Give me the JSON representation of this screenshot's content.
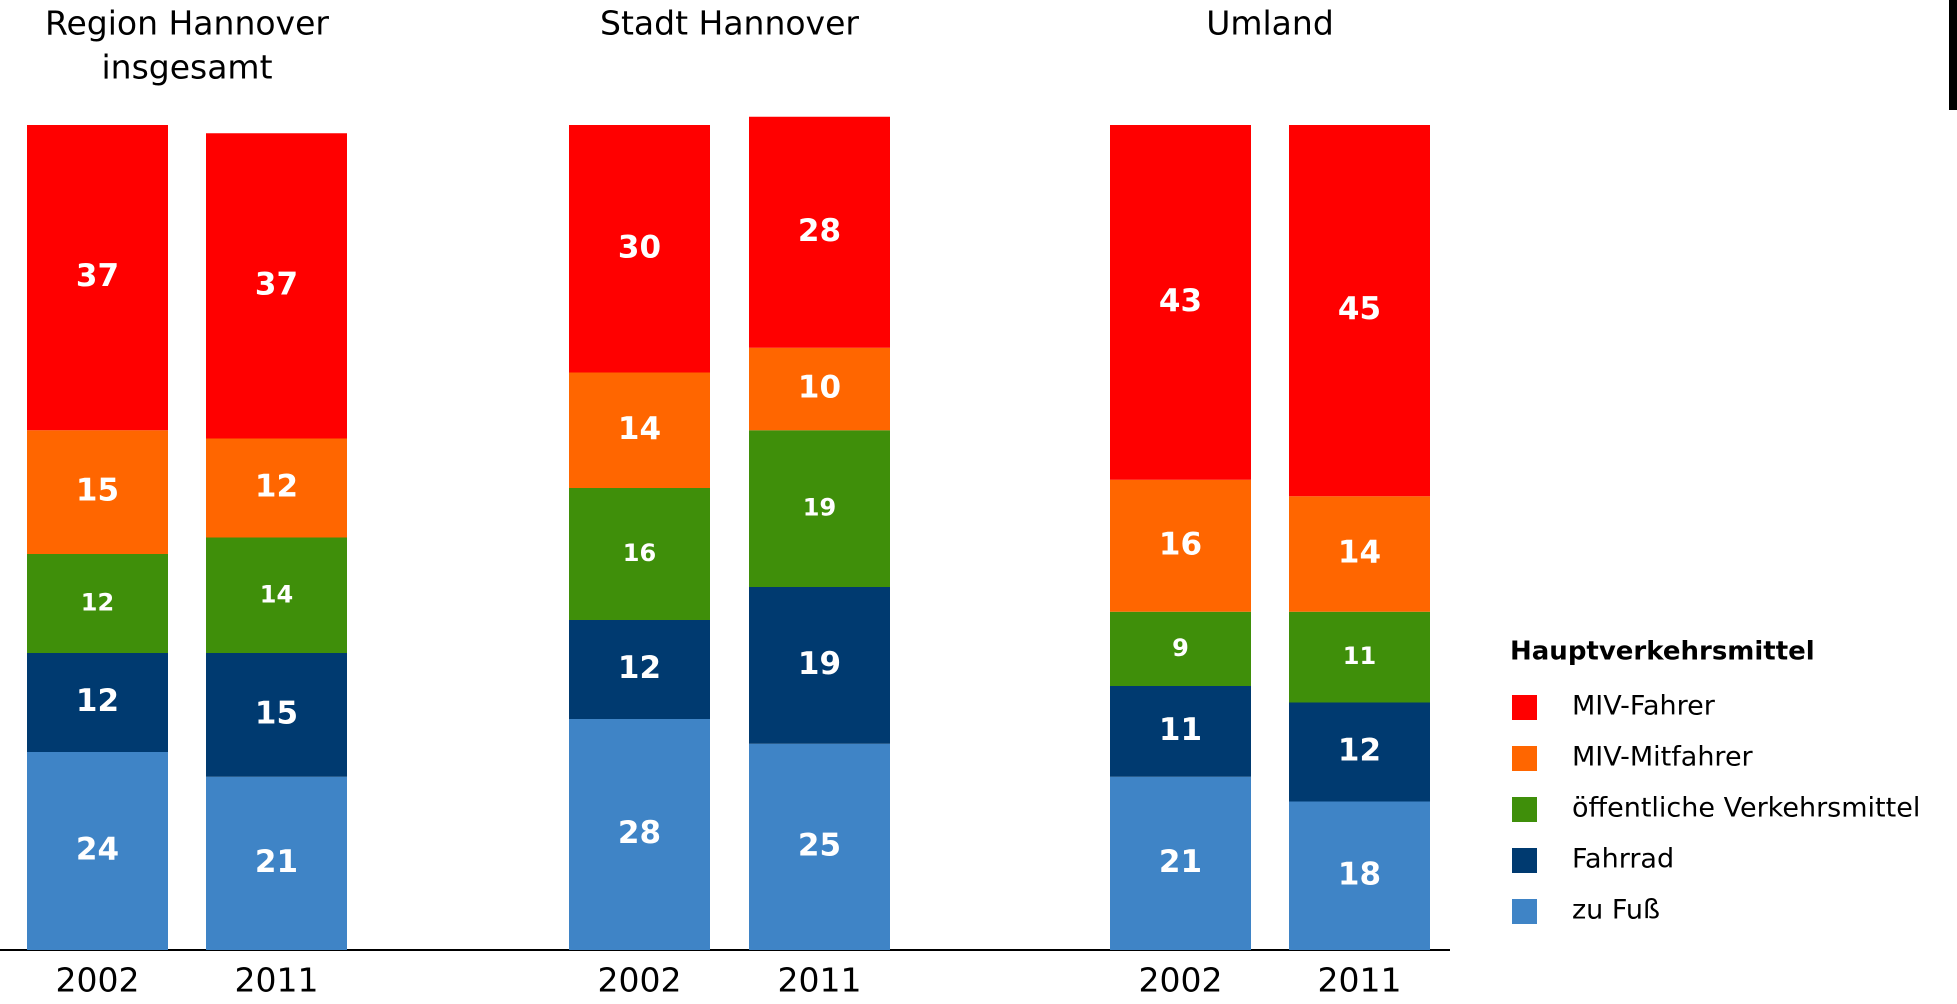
{
  "chart_data": {
    "type": "stacked_bar",
    "groups": [
      {
        "title": [
          "Region Hannover",
          "insgesamt"
        ]
      },
      {
        "title": [
          "Stadt Hannover"
        ]
      },
      {
        "title": [
          "Umland"
        ]
      }
    ],
    "categories": [
      "2002",
      "2011",
      "2002",
      "2011",
      "2002",
      "2011"
    ],
    "ylim": [
      0,
      100
    ],
    "legend_title": "Hauptverkehrsmittel",
    "legend": "right",
    "series": [
      {
        "name": "MIV-Fahrer",
        "color": "#ff0000",
        "values": [
          37,
          37,
          30,
          28,
          43,
          45
        ]
      },
      {
        "name": "MIV-Mitfahrer",
        "color": "#ff6600",
        "values": [
          15,
          12,
          14,
          10,
          16,
          14
        ]
      },
      {
        "name": "öffentliche Verkehrsmittel",
        "color": "#3f8f0a",
        "values": [
          12,
          14,
          16,
          19,
          9,
          11
        ]
      },
      {
        "name": "Fahrrad",
        "color": "#003a70",
        "values": [
          12,
          15,
          12,
          19,
          11,
          12
        ]
      },
      {
        "name": "zu Fuß",
        "color": "#3f84c6",
        "values": [
          24,
          21,
          28,
          25,
          21,
          18
        ]
      }
    ]
  }
}
